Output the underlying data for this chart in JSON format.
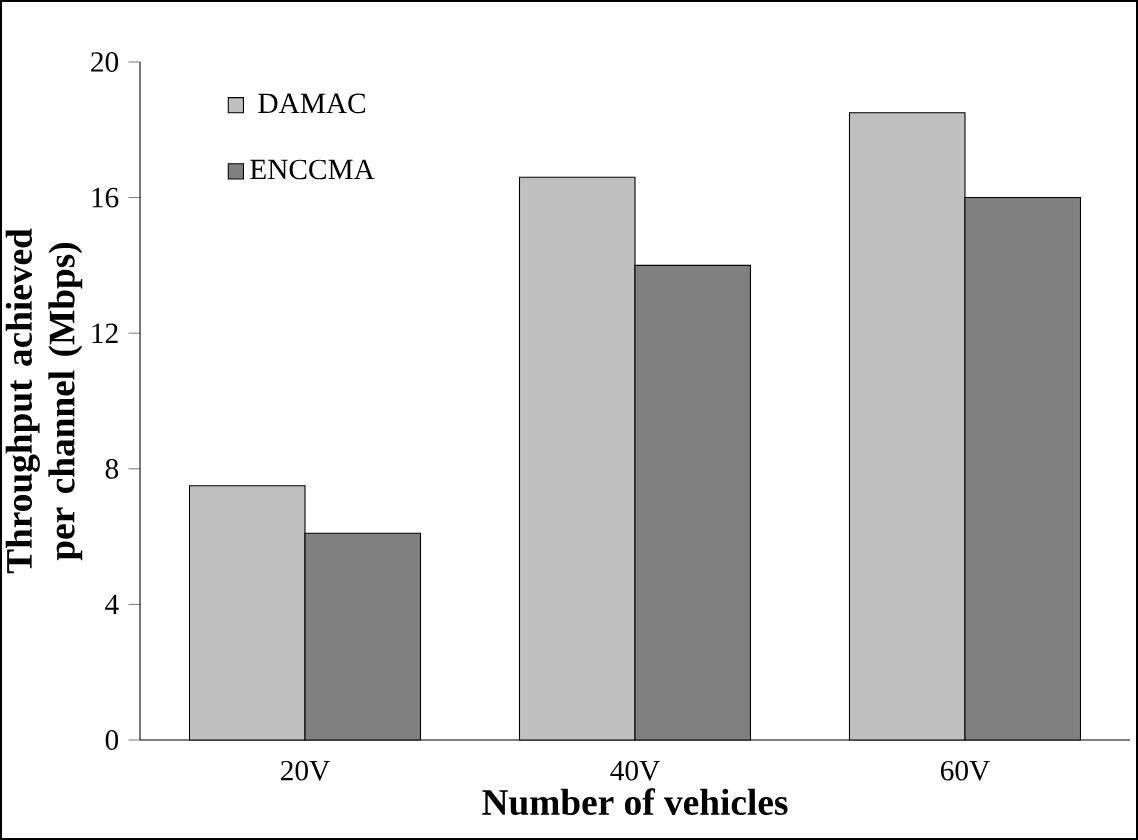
{
  "chart_data": {
    "type": "bar",
    "xlabel": "Number of vehicles",
    "ylabel": "Throughput achieved per channel (Mbps)",
    "categories": [
      "20V",
      "40V",
      "60V"
    ],
    "series": [
      {
        "name": "DAMAC",
        "color": "#c0c0c0",
        "values": [
          7.5,
          16.6,
          18.5
        ]
      },
      {
        "name": "ENCCMA",
        "color": "#808080",
        "values": [
          6.1,
          14.0,
          16.0
        ]
      }
    ],
    "ylim": [
      0,
      20
    ],
    "yticks": [
      0,
      4,
      8,
      12,
      16,
      20
    ],
    "grid": false,
    "legend": "top left"
  }
}
